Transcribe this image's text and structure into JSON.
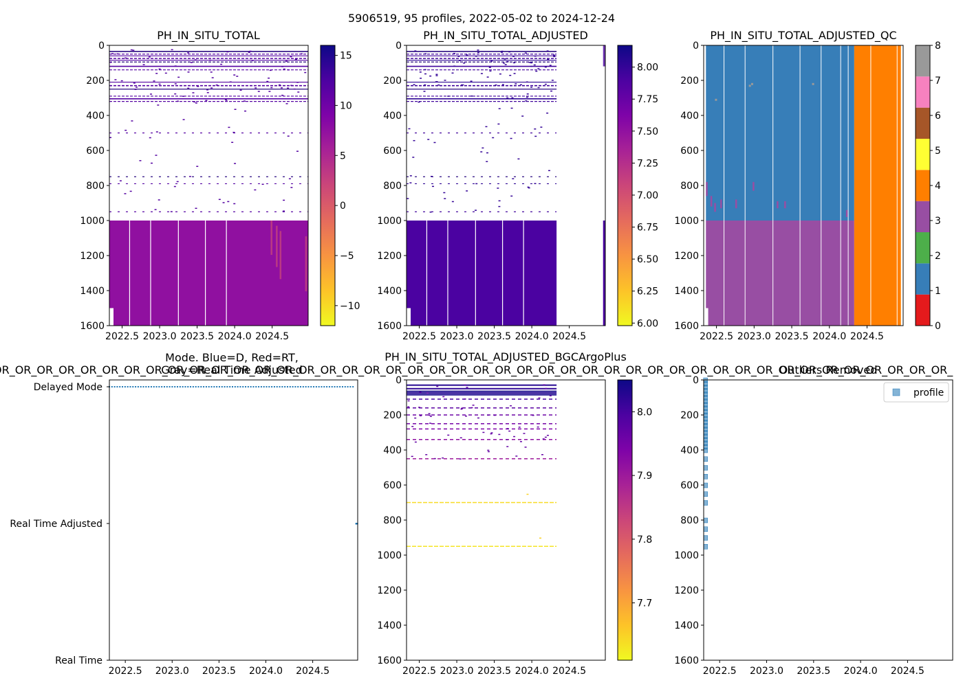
{
  "suptitle": "5906519, 95 profiles, 2022-05-02 to 2024-12-24",
  "colors": {
    "plasma_r": [
      "#f0f921",
      "#fdc328",
      "#f89441",
      "#e56b5d",
      "#cb4679",
      "#a82296",
      "#7e03a8",
      "#4c02a1",
      "#0d0887"
    ],
    "qc": [
      "#e41a1c",
      "#377eb8",
      "#4daf4a",
      "#984ea3",
      "#ff7f00",
      "#ffff33",
      "#a65628",
      "#f781bf",
      "#999999"
    ],
    "profile_marker": "#1f77b4",
    "overlay_rt": "#d62728"
  },
  "chart_data": [
    {
      "id": "ph_total",
      "type": "heatmap",
      "title": "PH_IN_SITU_TOTAL",
      "xlim": [
        2022.33,
        2024.98
      ],
      "ylim": [
        1600,
        0
      ],
      "xticks": [
        "2022.5",
        "2023.0",
        "2023.5",
        "2024.0",
        "2024.5"
      ],
      "yticks": [
        "0",
        "200",
        "400",
        "600",
        "800",
        "1000",
        "1200",
        "1400",
        "1600"
      ],
      "time_end": 2024.98,
      "colorbar": {
        "range": [
          -12,
          16
        ],
        "ticks": [
          "15",
          "10",
          "5",
          "0",
          "−5",
          "−10"
        ]
      },
      "deep_value": 7.5,
      "deep_top": 1000,
      "gap_profiles_x": [
        2022.6,
        2022.88,
        2023.25,
        2023.61,
        2023.89
      ],
      "shallow_line_depths": [
        35,
        50,
        60,
        75,
        85,
        95,
        120,
        140,
        210,
        230,
        250,
        290,
        305,
        320,
        500,
        750,
        790,
        950
      ]
    },
    {
      "id": "ph_adjusted",
      "type": "heatmap",
      "title": "PH_IN_SITU_TOTAL_ADJUSTED",
      "xlim": [
        2022.33,
        2024.98
      ],
      "ylim": [
        1600,
        0
      ],
      "xticks": [
        "2022.5",
        "2023.0",
        "2023.5",
        "2024.0",
        "2024.5"
      ],
      "yticks": [
        "0",
        "200",
        "400",
        "600",
        "800",
        "1000",
        "1200",
        "1400",
        "1600"
      ],
      "time_end": 2024.33,
      "colorbar": {
        "range": [
          5.98,
          8.17
        ],
        "ticks": [
          "8.00",
          "7.75",
          "7.50",
          "7.25",
          "7.00",
          "6.75",
          "6.50",
          "6.25",
          "6.00"
        ]
      },
      "deep_value": 7.9,
      "deep_top": 1000,
      "gap_profiles_x": [
        2022.6,
        2022.88,
        2023.25,
        2023.61,
        2023.89
      ],
      "shallow_line_depths": [
        35,
        50,
        60,
        75,
        85,
        95,
        120,
        140,
        210,
        230,
        250,
        290,
        305,
        320,
        500,
        750,
        790,
        950
      ]
    },
    {
      "id": "ph_adjusted_qc",
      "type": "heatmap",
      "title": "PH_IN_SITU_TOTAL_ADJUSTED_QC",
      "xlim": [
        2022.33,
        2024.98
      ],
      "ylim": [
        1600,
        0
      ],
      "xticks": [
        "2022.5",
        "2023.0",
        "2023.5",
        "2024.0",
        "2024.5"
      ],
      "yticks": [
        "0",
        "200",
        "400",
        "600",
        "800",
        "1000",
        "1200",
        "1400",
        "1600"
      ],
      "colorbar": {
        "range": [
          0,
          8
        ],
        "ticks": [
          "8",
          "7",
          "6",
          "5",
          "4",
          "3",
          "2",
          "1",
          "0"
        ]
      },
      "qc_regions": [
        {
          "x0": 2022.36,
          "x1": 2024.33,
          "y0": 0,
          "y1": 1000,
          "qc": 1
        },
        {
          "x0": 2022.36,
          "x1": 2024.33,
          "y0": 1000,
          "y1": 1500,
          "qc": 3
        },
        {
          "x0": 2022.39,
          "x1": 2024.33,
          "y0": 1500,
          "y1": 1600,
          "qc": 3
        },
        {
          "x0": 2024.33,
          "x1": 2024.95,
          "y0": 0,
          "y1": 1600,
          "qc": 4
        }
      ]
    },
    {
      "id": "data_mode",
      "type": "scatter",
      "title": "Mode. Blue=D, Red=RT,",
      "title_line2": "Gray=Real Time Adjusted",
      "overlay_text": "OR_OR_OR_OR_OR_OR_OR_OR_OR_OR_OR_OR_OR_OR_OR_OR_OR_OR_OR_OR_OR_OR_OR_OR_OR_OR_OR_OR_OR_OR_OR_OR_OR_OR_OR_OR_OR_OR_OR_OR_OR_OR_OR_OR_",
      "xlim": [
        2022.33,
        2024.98
      ],
      "xticks": [
        "2022.5",
        "2023.0",
        "2023.5",
        "2024.0",
        "2024.5"
      ],
      "ylabels": [
        "Delayed Mode",
        "Real Time Adjusted",
        "Real Time"
      ],
      "series": [
        {
          "name": "Delayed Mode",
          "x_range": [
            2022.33,
            2024.93
          ],
          "count": 94
        },
        {
          "name": "Real Time Adjusted",
          "x": [
            2024.97
          ],
          "count": 1
        }
      ]
    },
    {
      "id": "ph_bgcargoplus",
      "type": "heatmap",
      "title": "PH_IN_SITU_TOTAL_ADJUSTED_BGCArgoPlus",
      "xlim": [
        2022.33,
        2024.98
      ],
      "ylim": [
        1600,
        0
      ],
      "xticks": [
        "2022.5",
        "2023.0",
        "2023.5",
        "2024.0",
        "2024.5"
      ],
      "yticks": [
        "0",
        "200",
        "400",
        "600",
        "800",
        "1000",
        "1200",
        "1400",
        "1600"
      ],
      "time_end": 2024.33,
      "colorbar": {
        "range": [
          7.61,
          8.05
        ],
        "ticks": [
          "8.0",
          "7.9",
          "7.8",
          "7.7"
        ]
      },
      "lines": [
        {
          "depth": 30,
          "value": 8.03
        },
        {
          "depth": 50,
          "value": 8.02
        },
        {
          "depth": 65,
          "value": 8.04
        },
        {
          "depth": 75,
          "value": 8.03
        },
        {
          "depth": 85,
          "value": 8.04
        },
        {
          "depth": 110,
          "value": 8.0
        },
        {
          "depth": 160,
          "value": 7.98
        },
        {
          "depth": 200,
          "value": 7.96
        },
        {
          "depth": 250,
          "value": 7.95
        },
        {
          "depth": 280,
          "value": 7.94
        },
        {
          "depth": 340,
          "value": 7.92
        },
        {
          "depth": 450,
          "value": 7.9
        },
        {
          "depth": 700,
          "value": 7.64
        },
        {
          "depth": 950,
          "value": 7.63
        }
      ]
    },
    {
      "id": "outliers",
      "type": "scatter",
      "title": "Outliers Removed",
      "overlay_text": "OR_OR_OR_OR_OR_OR_OR_OR_OR_OR_OR_OR_OR_OR_OR_OR_OR_OR_OR_OR_OR_OR_OR_OR_OR_OR_OR_OR_OR_OR_OR_OR_OR_OR_OR_OR_OR_OR_OR_OR_OR_OR_OR_OR_",
      "xlim": [
        2022.33,
        2024.98
      ],
      "ylim": [
        1600,
        0
      ],
      "xticks": [
        "2022.5",
        "2023.0",
        "2023.5",
        "2024.0",
        "2024.5"
      ],
      "yticks": [
        "0",
        "200",
        "400",
        "600",
        "800",
        "1000",
        "1200",
        "1400",
        "1600"
      ],
      "legend": [
        "profile"
      ],
      "series": [
        {
          "name": "profile",
          "x": 2022.35,
          "y": [
            0,
            20,
            40,
            60,
            80,
            100,
            120,
            140,
            160,
            180,
            200,
            220,
            240,
            260,
            280,
            300,
            320,
            340,
            360,
            380,
            400,
            450,
            500,
            550,
            600,
            650,
            700,
            800,
            850,
            900,
            950
          ]
        }
      ]
    }
  ]
}
